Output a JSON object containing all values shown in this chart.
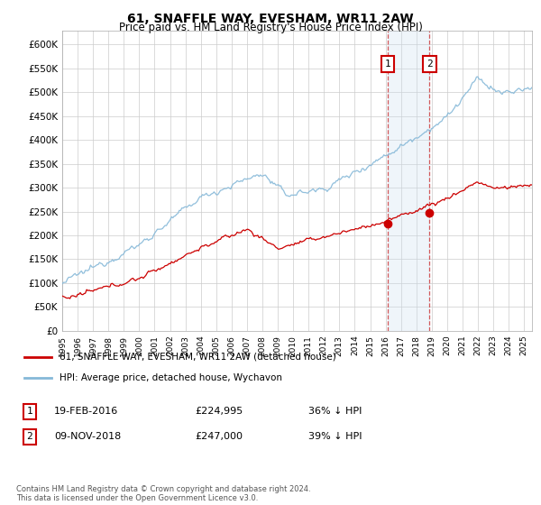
{
  "title": "61, SNAFFLE WAY, EVESHAM, WR11 2AW",
  "subtitle": "Price paid vs. HM Land Registry's House Price Index (HPI)",
  "legend_line1": "61, SNAFFLE WAY, EVESHAM, WR11 2AW (detached house)",
  "legend_line2": "HPI: Average price, detached house, Wychavon",
  "transaction1_date": "19-FEB-2016",
  "transaction1_price": "£224,995",
  "transaction1_hpi": "36% ↓ HPI",
  "transaction1_year": 2016.13,
  "transaction1_value": 224995,
  "transaction2_date": "09-NOV-2018",
  "transaction2_price": "£247,000",
  "transaction2_hpi": "39% ↓ HPI",
  "transaction2_year": 2018.86,
  "transaction2_value": 247000,
  "hpi_color": "#85b8d8",
  "price_color": "#cc0000",
  "shaded_color": "#cce0f0",
  "footnote": "Contains HM Land Registry data © Crown copyright and database right 2024.\nThis data is licensed under the Open Government Licence v3.0.",
  "ylim_min": 0,
  "ylim_max": 630000,
  "xlim_min": 1995.0,
  "xlim_max": 2025.5,
  "yticks": [
    0,
    50000,
    100000,
    150000,
    200000,
    250000,
    300000,
    350000,
    400000,
    450000,
    500000,
    550000,
    600000
  ],
  "xticks": [
    1995,
    1996,
    1997,
    1998,
    1999,
    2000,
    2001,
    2002,
    2003,
    2004,
    2005,
    2006,
    2007,
    2008,
    2009,
    2010,
    2011,
    2012,
    2013,
    2014,
    2015,
    2016,
    2017,
    2018,
    2019,
    2020,
    2021,
    2022,
    2023,
    2024,
    2025
  ]
}
